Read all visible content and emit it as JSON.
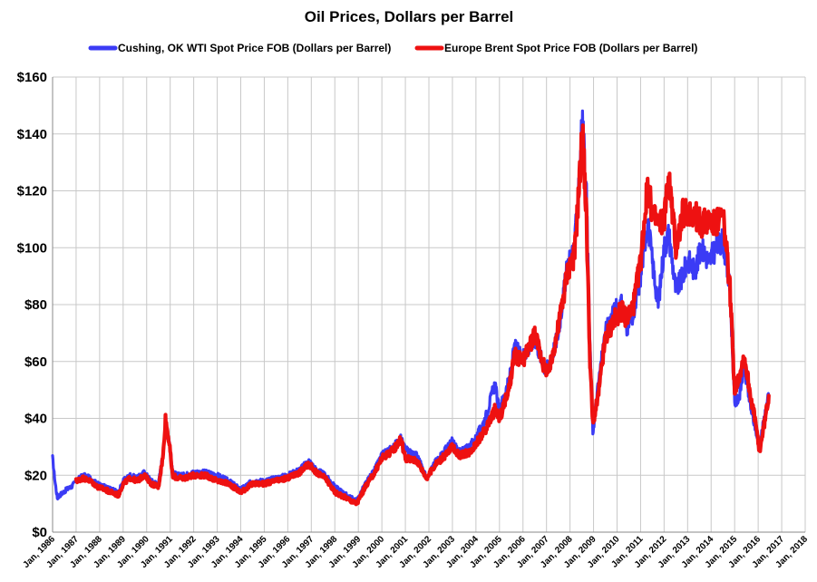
{
  "chart_data": {
    "type": "line",
    "title": "Oil Prices, Dollars  per Barrel",
    "xlabel": "",
    "ylabel": "",
    "grid": true,
    "legend_position": "top",
    "ylim": [
      0,
      160
    ],
    "y_ticks": [
      0,
      20,
      40,
      60,
      80,
      100,
      120,
      140,
      160
    ],
    "y_tick_labels": [
      "$0",
      "$20",
      "$40",
      "$60",
      "$80",
      "$100",
      "$120",
      "$140",
      "$160"
    ],
    "x_ticks": [
      1986,
      1987,
      1988,
      1989,
      1990,
      1991,
      1992,
      1993,
      1994,
      1995,
      1996,
      1997,
      1998,
      1999,
      2000,
      2001,
      2002,
      2003,
      2004,
      2005,
      2006,
      2007,
      2008,
      2009,
      2010,
      2011,
      2012,
      2013,
      2014,
      2015,
      2016,
      2017,
      2018
    ],
    "x_tick_labels": [
      "Jan, 1986",
      "Jan, 1987",
      "Jan, 1988",
      "Jan, 1989",
      "Jan, 1990",
      "Jan, 1991",
      "Jan, 1992",
      "Jan, 1993",
      "Jan, 1994",
      "Jan, 1995",
      "Jan, 1996",
      "Jan, 1997",
      "Jan, 1998",
      "Jan, 1999",
      "Jan, 2000",
      "Jan, 2001",
      "Jan, 2002",
      "Jan, 2003",
      "Jan, 2004",
      "Jan, 2005",
      "Jan, 2006",
      "Jan, 2007",
      "Jan, 2008",
      "Jan, 2009",
      "Jan, 2010",
      "Jan, 2011",
      "Jan, 2012",
      "Jan, 2013",
      "Jan, 2014",
      "Jan, 2015",
      "Jan, 2016",
      "Jan, 2017",
      "Jan, 2018"
    ],
    "xlim": [
      1986,
      2018
    ],
    "series": [
      {
        "name": "Cushing, OK WTI Spot Price FOB (Dollars per Barrel)",
        "color": "#3b3bf5",
        "x": [
          1986.0,
          1986.1,
          1986.2,
          1986.3,
          1986.45,
          1986.6,
          1986.8,
          1987.0,
          1987.3,
          1987.6,
          1987.9,
          1988.2,
          1988.5,
          1988.8,
          1989.0,
          1989.3,
          1989.6,
          1989.9,
          1990.2,
          1990.5,
          1990.7,
          1990.8,
          1990.95,
          1991.1,
          1991.3,
          1991.6,
          1992.0,
          1992.5,
          1993.0,
          1993.5,
          1994.0,
          1994.5,
          1995.0,
          1995.5,
          1996.0,
          1996.5,
          1996.9,
          1997.2,
          1997.6,
          1998.0,
          1998.5,
          1998.9,
          1999.0,
          1999.3,
          1999.7,
          2000.0,
          2000.5,
          2000.8,
          2001.0,
          2001.5,
          2001.9,
          2002.3,
          2002.7,
          2003.0,
          2003.3,
          2003.7,
          2004.0,
          2004.4,
          2004.8,
          2005.0,
          2005.4,
          2005.65,
          2006.0,
          2006.5,
          2006.9,
          2007.1,
          2007.5,
          2007.9,
          2008.2,
          2008.45,
          2008.53,
          2008.7,
          2008.85,
          2008.97,
          2009.2,
          2009.5,
          2009.9,
          2010.2,
          2010.4,
          2010.7,
          2011.0,
          2011.3,
          2011.5,
          2011.75,
          2012.0,
          2012.2,
          2012.5,
          2012.8,
          2013.0,
          2013.3,
          2013.6,
          2013.9,
          2014.2,
          2014.5,
          2014.8,
          2015.0,
          2015.2,
          2015.4,
          2015.7,
          2015.9,
          2016.05,
          2016.3,
          2016.45
        ],
        "values": [
          26,
          18,
          12,
          13,
          14,
          15,
          16,
          18,
          20,
          19,
          17,
          16,
          15,
          14,
          18,
          20,
          19,
          21,
          18,
          17,
          28,
          35,
          33,
          21,
          20,
          20,
          21,
          21,
          20,
          18,
          15,
          18,
          18,
          19,
          20,
          22,
          25,
          22,
          20,
          16,
          13,
          11,
          12,
          17,
          22,
          27,
          30,
          33,
          29,
          27,
          19,
          25,
          29,
          32,
          28,
          30,
          33,
          40,
          52,
          43,
          53,
          65,
          62,
          68,
          58,
          58,
          70,
          94,
          100,
          135,
          145,
          118,
          65,
          35,
          52,
          70,
          78,
          80,
          72,
          76,
          90,
          110,
          95,
          80,
          100,
          105,
          85,
          90,
          96,
          92,
          100,
          95,
          100,
          103,
          85,
          45,
          48,
          58,
          43,
          36,
          30,
          42,
          48
        ]
      },
      {
        "name": "Europe Brent Spot Price FOB (Dollars per Barrel)",
        "color": "#ee1111",
        "x": [
          1987.0,
          1987.3,
          1987.6,
          1987.9,
          1988.2,
          1988.5,
          1988.8,
          1989.0,
          1989.3,
          1989.6,
          1989.9,
          1990.2,
          1990.5,
          1990.7,
          1990.8,
          1990.95,
          1991.1,
          1991.3,
          1991.6,
          1992.0,
          1992.5,
          1993.0,
          1993.5,
          1994.0,
          1994.5,
          1995.0,
          1995.5,
          1996.0,
          1996.5,
          1996.9,
          1997.2,
          1997.6,
          1998.0,
          1998.5,
          1998.9,
          1999.0,
          1999.3,
          1999.7,
          2000.0,
          2000.5,
          2000.8,
          2001.0,
          2001.5,
          2001.9,
          2002.3,
          2002.7,
          2003.0,
          2003.3,
          2003.7,
          2004.0,
          2004.4,
          2004.8,
          2005.0,
          2005.4,
          2005.65,
          2006.0,
          2006.5,
          2006.9,
          2007.1,
          2007.5,
          2007.9,
          2008.2,
          2008.45,
          2008.53,
          2008.7,
          2008.85,
          2008.97,
          2009.2,
          2009.5,
          2009.9,
          2010.2,
          2010.4,
          2010.7,
          2011.0,
          2011.3,
          2011.5,
          2011.75,
          2012.0,
          2012.2,
          2012.5,
          2012.8,
          2013.0,
          2013.3,
          2013.6,
          2013.9,
          2014.2,
          2014.5,
          2014.8,
          2015.0,
          2015.2,
          2015.4,
          2015.7,
          2015.9,
          2016.05,
          2016.3,
          2016.45
        ],
        "values": [
          18,
          19,
          18,
          16,
          15,
          14,
          13,
          17,
          19,
          18,
          20,
          17,
          16,
          27,
          40,
          32,
          20,
          19,
          19,
          20,
          20,
          18,
          17,
          14,
          17,
          17,
          18,
          19,
          21,
          24,
          21,
          19,
          14,
          12,
          10,
          11,
          16,
          21,
          26,
          29,
          33,
          26,
          25,
          19,
          24,
          27,
          30,
          27,
          28,
          31,
          36,
          43,
          40,
          50,
          62,
          60,
          70,
          58,
          56,
          72,
          92,
          98,
          130,
          142,
          110,
          60,
          38,
          48,
          68,
          75,
          78,
          75,
          80,
          95,
          122,
          112,
          108,
          110,
          125,
          100,
          112,
          113,
          112,
          108,
          110,
          108,
          112,
          86,
          50,
          55,
          62,
          47,
          38,
          28,
          40,
          48
        ]
      }
    ]
  }
}
